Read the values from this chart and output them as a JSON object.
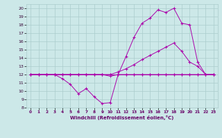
{
  "xlabel": "Windchill (Refroidissement éolien,°C)",
  "background_color": "#cce8e8",
  "grid_color": "#aacccc",
  "line_color": "#aa00aa",
  "xlim": [
    -0.5,
    23.5
  ],
  "ylim": [
    8,
    20.5
  ],
  "xticks": [
    0,
    1,
    2,
    3,
    4,
    5,
    6,
    7,
    8,
    9,
    10,
    11,
    12,
    13,
    14,
    15,
    16,
    17,
    18,
    19,
    20,
    21,
    22,
    23
  ],
  "yticks": [
    8,
    9,
    10,
    11,
    12,
    13,
    14,
    15,
    16,
    17,
    18,
    19,
    20
  ],
  "series": [
    {
      "x": [
        0,
        1,
        2,
        3,
        4,
        5,
        6,
        7,
        8,
        9,
        10,
        11,
        12,
        13,
        14,
        15,
        16,
        17,
        18,
        19,
        20,
        21,
        22,
        23
      ],
      "y": [
        12,
        12,
        12,
        12,
        12,
        12,
        12,
        12,
        12,
        12,
        12,
        12,
        12,
        12,
        12,
        12,
        12,
        12,
        12,
        12,
        12,
        12,
        12,
        12
      ]
    },
    {
      "x": [
        0,
        1,
        2,
        3,
        4,
        5,
        6,
        7,
        8,
        9,
        10,
        11,
        12,
        13,
        14,
        15,
        16,
        17,
        18,
        19,
        20,
        21,
        22,
        23
      ],
      "y": [
        12,
        12,
        12,
        12,
        11.5,
        10.8,
        9.7,
        10.3,
        9.3,
        8.5,
        8.6,
        12,
        12,
        12,
        12,
        12,
        12,
        12,
        12,
        12,
        12,
        12,
        12,
        12
      ]
    },
    {
      "x": [
        0,
        1,
        2,
        3,
        4,
        5,
        6,
        7,
        8,
        9,
        10,
        11,
        12,
        13,
        14,
        15,
        16,
        17,
        18,
        19,
        20,
        21,
        22,
        23
      ],
      "y": [
        12,
        12,
        12,
        12,
        12,
        12,
        12,
        12,
        12,
        12,
        12,
        12.3,
        12.7,
        13.2,
        13.8,
        14.3,
        14.8,
        15.3,
        15.8,
        14.8,
        13.5,
        13.0,
        12,
        12
      ]
    },
    {
      "x": [
        0,
        1,
        2,
        3,
        4,
        5,
        6,
        7,
        8,
        9,
        10,
        11,
        12,
        13,
        14,
        15,
        16,
        17,
        18,
        19,
        20,
        21,
        22,
        23
      ],
      "y": [
        12,
        12,
        12,
        12,
        12,
        12,
        12,
        12,
        12,
        12,
        11.8,
        12.0,
        14.2,
        16.5,
        18.2,
        18.8,
        19.8,
        19.5,
        20.0,
        18.2,
        18.0,
        13.5,
        12,
        12
      ]
    }
  ]
}
